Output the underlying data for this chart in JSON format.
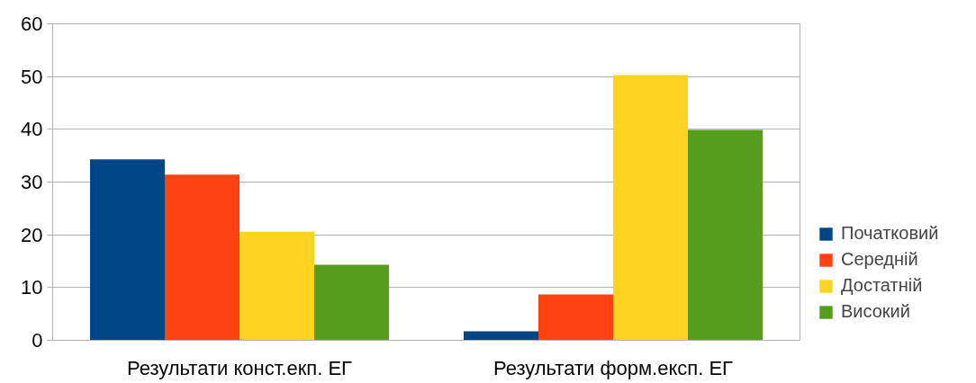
{
  "chart_data": {
    "type": "bar",
    "categories": [
      "Результати конст.екп. ЕГ",
      "Результати форм.експ. ЕГ"
    ],
    "series": [
      {
        "name": "Початковий",
        "color": "#004586",
        "values": [
          34.3,
          1.7
        ]
      },
      {
        "name": "Середній",
        "color": "#ff420e",
        "values": [
          31.4,
          8.7
        ]
      },
      {
        "name": "Достатній",
        "color": "#ffd320",
        "values": [
          20.6,
          50.3
        ]
      },
      {
        "name": "Високий",
        "color": "#579d1c",
        "values": [
          14.3,
          39.9
        ]
      }
    ],
    "ylim": [
      0,
      60
    ],
    "yticks": [
      0,
      10,
      20,
      30,
      40,
      50,
      60
    ],
    "grid": "y",
    "legend": "right"
  }
}
